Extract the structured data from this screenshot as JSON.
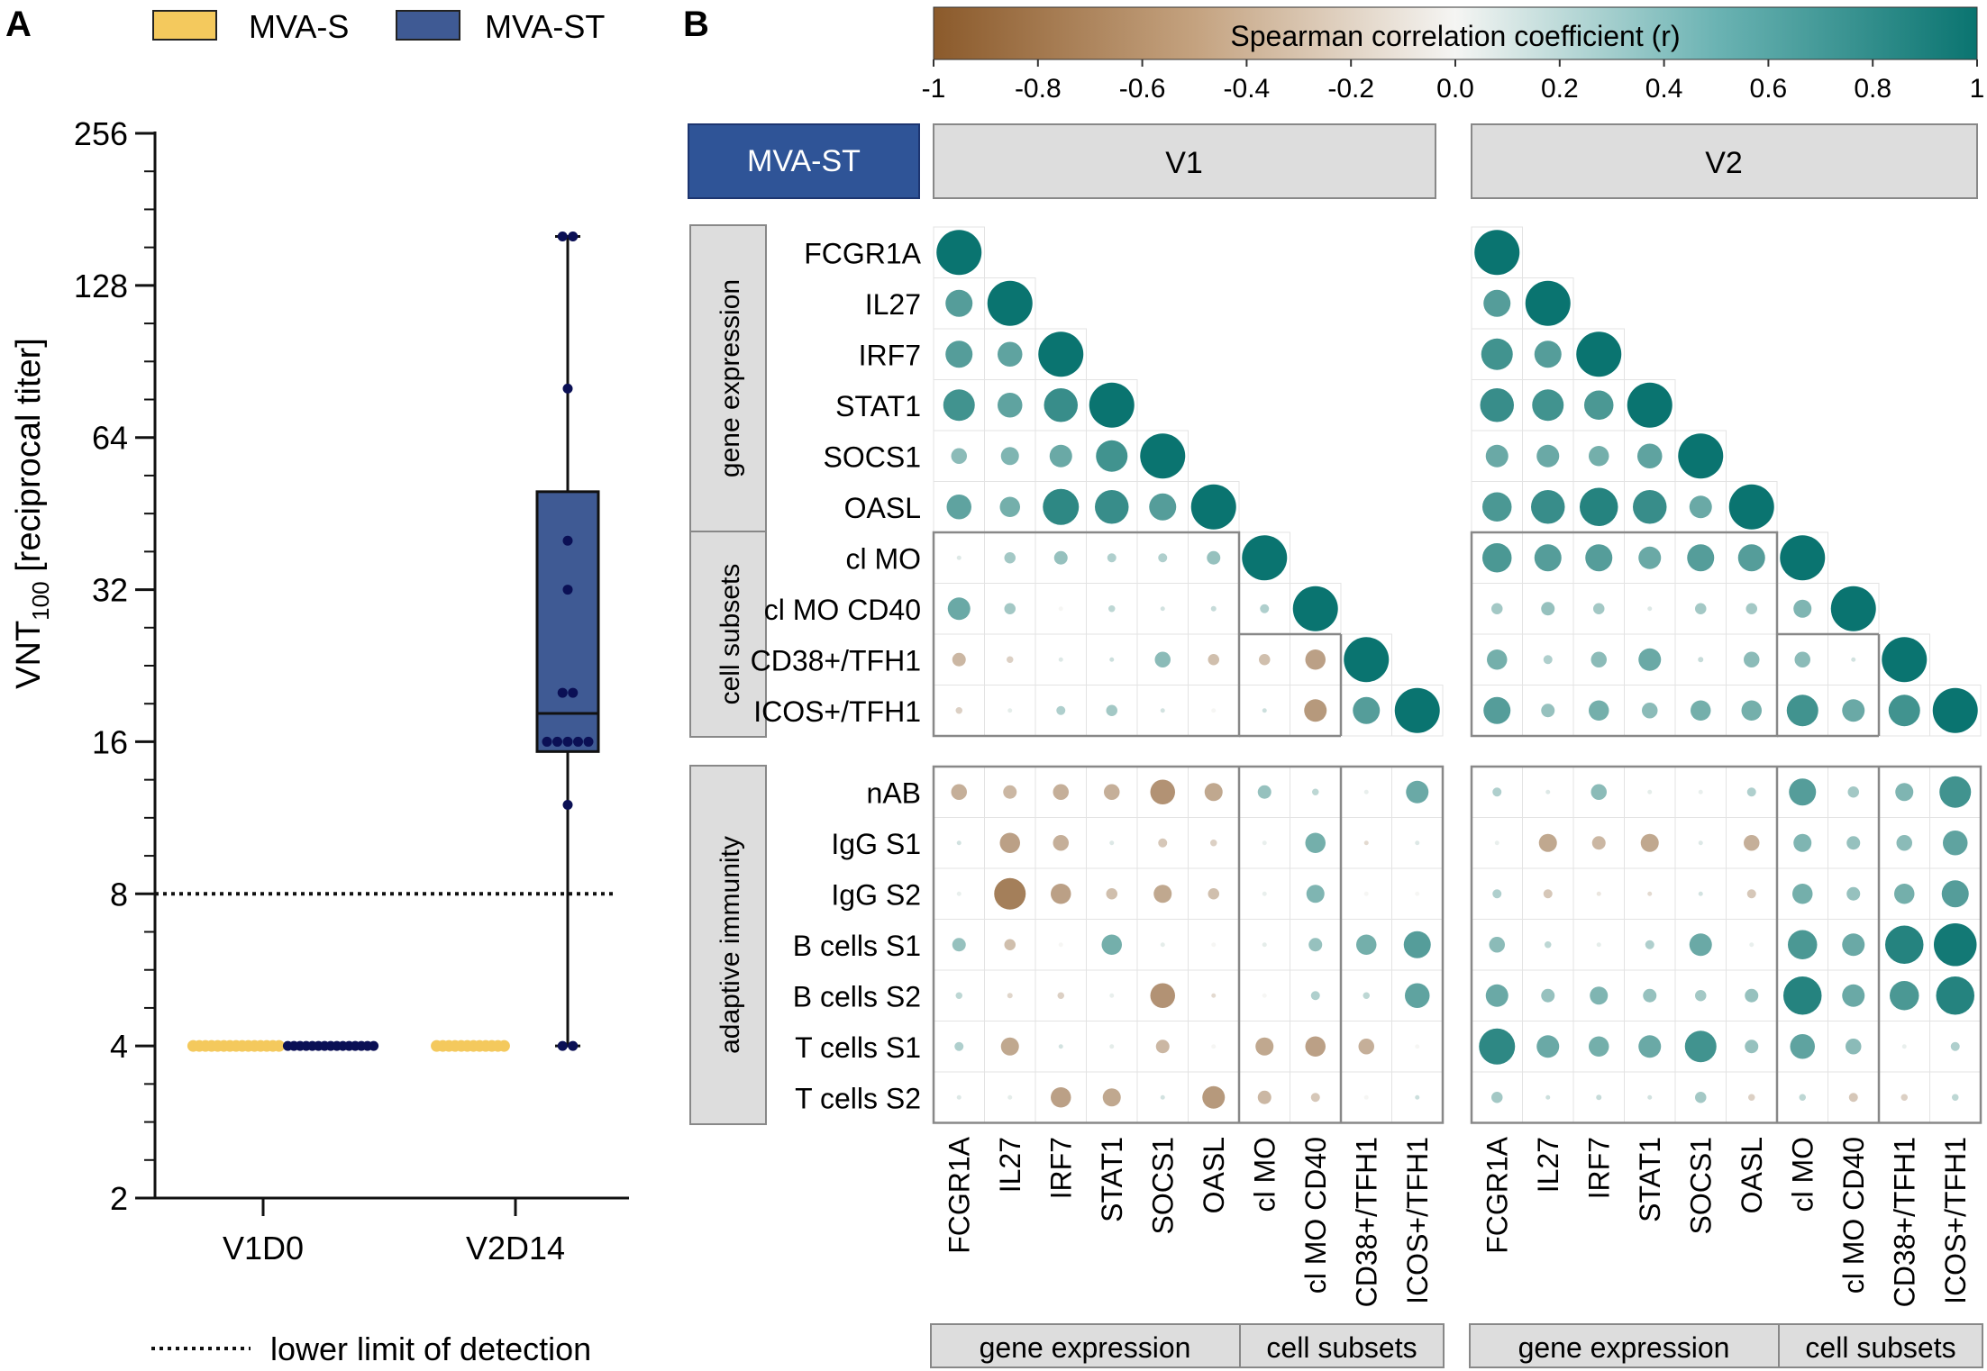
{
  "colors": {
    "mva_s": "#F4C95D",
    "mva_st": "#3F5A94",
    "mva_st_points": "#0B1055",
    "neg": "#8B5A2B",
    "pos": "#0A7470",
    "header_fill": "#DDDDDD",
    "mva_st_badge": "#2F5497"
  },
  "panel_a": {
    "letter": "A",
    "legend": {
      "mva_s": "MVA-S",
      "mva_st": "MVA-ST"
    },
    "footnote": "lower limit of detection",
    "chart_data": {
      "type": "box",
      "title": "",
      "ylabel_main": "VNT",
      "ylabel_sub": "100",
      "ylabel_rest": " [reciprocal titer]",
      "yscale": "log2",
      "ylim": [
        2,
        256
      ],
      "yticks": [
        "2",
        "4",
        "8",
        "16",
        "32",
        "64",
        "128",
        "256"
      ],
      "ytick_values": [
        2,
        4,
        8,
        16,
        32,
        64,
        128,
        256
      ],
      "categories": [
        "V1D0",
        "V2D14"
      ],
      "lower_limit_of_detection": 8,
      "series": [
        {
          "name": "MVA-S",
          "groups": [
            {
              "category": "V1D0",
              "values": [
                4,
                4,
                4,
                4,
                4,
                4,
                4,
                4,
                4,
                4,
                4,
                4,
                4,
                4,
                4
              ],
              "box": null
            },
            {
              "category": "V2D14",
              "values": [
                4,
                4,
                4,
                4,
                4,
                4,
                4,
                4,
                4,
                4,
                4,
                4
              ],
              "box": null
            }
          ]
        },
        {
          "name": "MVA-ST",
          "groups": [
            {
              "category": "V1D0",
              "values": [
                4,
                4,
                4,
                4,
                4,
                4,
                4,
                4,
                4,
                4,
                4,
                4,
                4,
                4,
                4
              ],
              "box": null
            },
            {
              "category": "V2D14",
              "values": [
                4,
                4,
                12,
                16,
                16,
                16,
                16,
                16,
                20,
                20,
                32,
                40,
                80,
                160,
                160
              ],
              "box": {
                "min": 4,
                "q1": 15.3,
                "median": 18.2,
                "q3": 50,
                "max": 160
              }
            }
          ]
        }
      ]
    }
  },
  "panel_b": {
    "letter": "B",
    "colorbar": {
      "title": "Spearman correlation coefficient (r)",
      "ticks": [
        "-1",
        "-0.8",
        "-0.6",
        "-0.4",
        "-0.2",
        "0.0",
        "0.2",
        "0.4",
        "0.6",
        "0.8",
        "1"
      ],
      "range": [
        -1,
        1
      ]
    },
    "badge": "MVA-ST",
    "visit_titles": [
      "V1",
      "V2"
    ],
    "row_groups": [
      "gene expression",
      "cell subsets",
      "adaptive immunity"
    ],
    "col_groups": [
      "gene expression",
      "cell subsets"
    ],
    "chart_data": {
      "type": "heatmap",
      "title": "Spearman correlation coefficient (r)",
      "variables": [
        "FCGR1A",
        "IL27",
        "IRF7",
        "STAT1",
        "SOCS1",
        "OASL",
        "cl MO",
        "cl MO CD40",
        "CD38+/TFH1",
        "ICOS+/TFH1"
      ],
      "adaptive_rows": [
        "nAB",
        "IgG S1",
        "IgG S2",
        "B cells S1",
        "B cells S2",
        "T cells S1",
        "T cells S2"
      ],
      "V1": {
        "triangle": [
          [
            1.0
          ],
          [
            0.6,
            1.0
          ],
          [
            0.6,
            0.55,
            1.0
          ],
          [
            0.7,
            0.55,
            0.75,
            1.0
          ],
          [
            0.35,
            0.4,
            0.5,
            0.7,
            1.0
          ],
          [
            0.55,
            0.45,
            0.8,
            0.75,
            0.6,
            1.0
          ],
          [
            0.05,
            0.25,
            0.3,
            0.2,
            0.2,
            0.3,
            1.0
          ],
          [
            0.5,
            0.25,
            0.0,
            0.15,
            0.08,
            0.12,
            0.2,
            1.0
          ],
          [
            -0.3,
            -0.15,
            0.05,
            0.1,
            0.35,
            -0.25,
            -0.25,
            -0.45,
            1.0
          ],
          [
            -0.15,
            0.03,
            0.2,
            0.25,
            0.08,
            0.0,
            0.1,
            -0.5,
            0.6,
            1.0
          ]
        ],
        "adaptive": [
          [
            -0.35,
            -0.3,
            -0.35,
            -0.35,
            -0.55,
            -0.4,
            0.3,
            0.15,
            0.02,
            0.5
          ],
          [
            0.08,
            -0.45,
            -0.35,
            0.05,
            -0.2,
            -0.15,
            0.02,
            0.45,
            -0.1,
            0.05
          ],
          [
            0.02,
            -0.7,
            -0.45,
            -0.25,
            -0.4,
            -0.25,
            0.02,
            0.4,
            0.0,
            0.0
          ],
          [
            0.3,
            -0.25,
            0.0,
            0.45,
            0.03,
            0.0,
            0.03,
            0.3,
            0.45,
            0.6
          ],
          [
            0.15,
            -0.12,
            -0.15,
            0.02,
            -0.55,
            -0.1,
            0.0,
            0.2,
            0.15,
            0.55
          ],
          [
            0.2,
            -0.4,
            0.08,
            0.03,
            -0.3,
            0.0,
            -0.4,
            -0.45,
            -0.35,
            0.0
          ],
          [
            0.05,
            0.03,
            -0.45,
            -0.4,
            0.08,
            -0.5,
            -0.3,
            -0.2,
            0.0,
            0.1
          ]
        ]
      },
      "V2": {
        "triangle": [
          [
            1.0
          ],
          [
            0.6,
            1.0
          ],
          [
            0.7,
            0.6,
            1.0
          ],
          [
            0.75,
            0.7,
            0.65,
            1.0
          ],
          [
            0.5,
            0.5,
            0.45,
            0.55,
            1.0
          ],
          [
            0.65,
            0.75,
            0.85,
            0.75,
            0.5,
            1.0
          ],
          [
            0.65,
            0.6,
            0.6,
            0.5,
            0.6,
            0.6,
            1.0
          ],
          [
            0.25,
            0.3,
            0.25,
            0.05,
            0.25,
            0.25,
            0.4,
            1.0
          ],
          [
            0.45,
            0.2,
            0.35,
            0.5,
            0.12,
            0.35,
            0.35,
            0.08,
            1.0
          ],
          [
            0.6,
            0.3,
            0.45,
            0.35,
            0.45,
            0.45,
            0.7,
            0.5,
            0.7,
            1.0
          ]
        ],
        "adaptive": [
          [
            0.2,
            0.05,
            0.35,
            0.03,
            0.02,
            0.2,
            0.6,
            0.25,
            0.4,
            0.7
          ],
          [
            0.02,
            -0.4,
            -0.3,
            -0.4,
            0.05,
            -0.35,
            0.4,
            0.3,
            0.35,
            0.55
          ],
          [
            0.2,
            -0.2,
            -0.05,
            -0.1,
            0.08,
            -0.2,
            0.45,
            0.3,
            0.45,
            0.6
          ],
          [
            0.35,
            0.15,
            0.03,
            0.2,
            0.5,
            0.02,
            0.65,
            0.5,
            0.85,
            0.95
          ],
          [
            0.5,
            0.3,
            0.4,
            0.3,
            0.25,
            0.3,
            0.85,
            0.5,
            0.65,
            0.85
          ],
          [
            0.8,
            0.5,
            0.45,
            0.5,
            0.7,
            0.3,
            0.55,
            0.35,
            0.02,
            0.2
          ],
          [
            0.25,
            0.1,
            0.12,
            0.08,
            0.25,
            -0.15,
            0.15,
            -0.2,
            -0.15,
            0.15
          ]
        ]
      }
    }
  }
}
